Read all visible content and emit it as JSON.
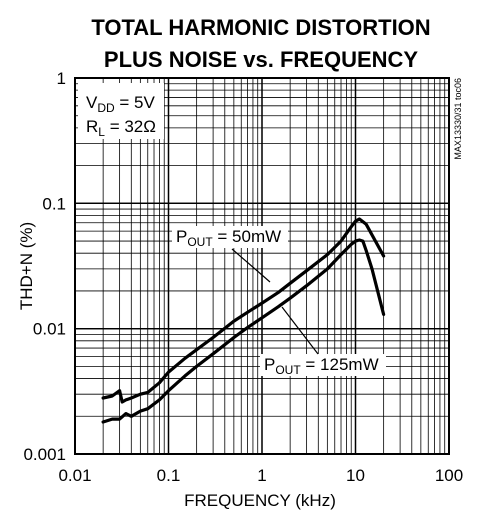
{
  "chart_data": {
    "type": "line",
    "title_line1": "TOTAL HARMONIC DISTORTION",
    "title_line2": "PLUS NOISE vs. FREQUENCY",
    "xlabel": "FREQUENCY (kHz)",
    "ylabel": "THD+N (%)",
    "xscale": "log",
    "yscale": "log",
    "xlim": [
      0.01,
      100
    ],
    "ylim": [
      0.001,
      1
    ],
    "x_ticks": [
      "0.01",
      "0.1",
      "1",
      "10",
      "100"
    ],
    "y_ticks": [
      "0.001",
      "0.01",
      "0.1",
      "1"
    ],
    "grid": true,
    "conditions": {
      "vdd": {
        "main": "V",
        "sub": "DD",
        "rest": " = 5V"
      },
      "rl": {
        "main": "R",
        "sub": "L",
        "rest": " = 32Ω"
      }
    },
    "part_number": "MAX13330/31 toc06",
    "series": [
      {
        "name": "POUT = 50mW",
        "label": {
          "main": "P",
          "sub": "OUT",
          "rest": " = 50mW"
        },
        "x": [
          0.02,
          0.025,
          0.03,
          0.032,
          0.035,
          0.04,
          0.05,
          0.06,
          0.08,
          0.1,
          0.15,
          0.2,
          0.3,
          0.5,
          0.7,
          1,
          1.5,
          2,
          3,
          5,
          7,
          9,
          10,
          11,
          13,
          15,
          20
        ],
        "y": [
          0.0028,
          0.0029,
          0.0032,
          0.0026,
          0.0027,
          0.0028,
          0.003,
          0.0031,
          0.0037,
          0.0045,
          0.0058,
          0.0068,
          0.0085,
          0.0115,
          0.0135,
          0.016,
          0.0195,
          0.023,
          0.029,
          0.039,
          0.05,
          0.065,
          0.072,
          0.075,
          0.068,
          0.056,
          0.038
        ]
      },
      {
        "name": "POUT = 125mW",
        "label": {
          "main": "P",
          "sub": "OUT",
          "rest": " = 125mW"
        },
        "x": [
          0.02,
          0.025,
          0.03,
          0.035,
          0.04,
          0.05,
          0.06,
          0.08,
          0.1,
          0.15,
          0.2,
          0.3,
          0.5,
          0.7,
          1,
          1.5,
          2,
          3,
          5,
          7,
          9,
          10,
          11,
          12,
          13,
          15,
          20
        ],
        "y": [
          0.0018,
          0.0019,
          0.0019,
          0.0021,
          0.002,
          0.0022,
          0.0023,
          0.0027,
          0.0032,
          0.0042,
          0.005,
          0.0063,
          0.0085,
          0.0102,
          0.0122,
          0.015,
          0.0175,
          0.022,
          0.03,
          0.039,
          0.047,
          0.05,
          0.051,
          0.05,
          0.042,
          0.03,
          0.013
        ]
      }
    ]
  }
}
